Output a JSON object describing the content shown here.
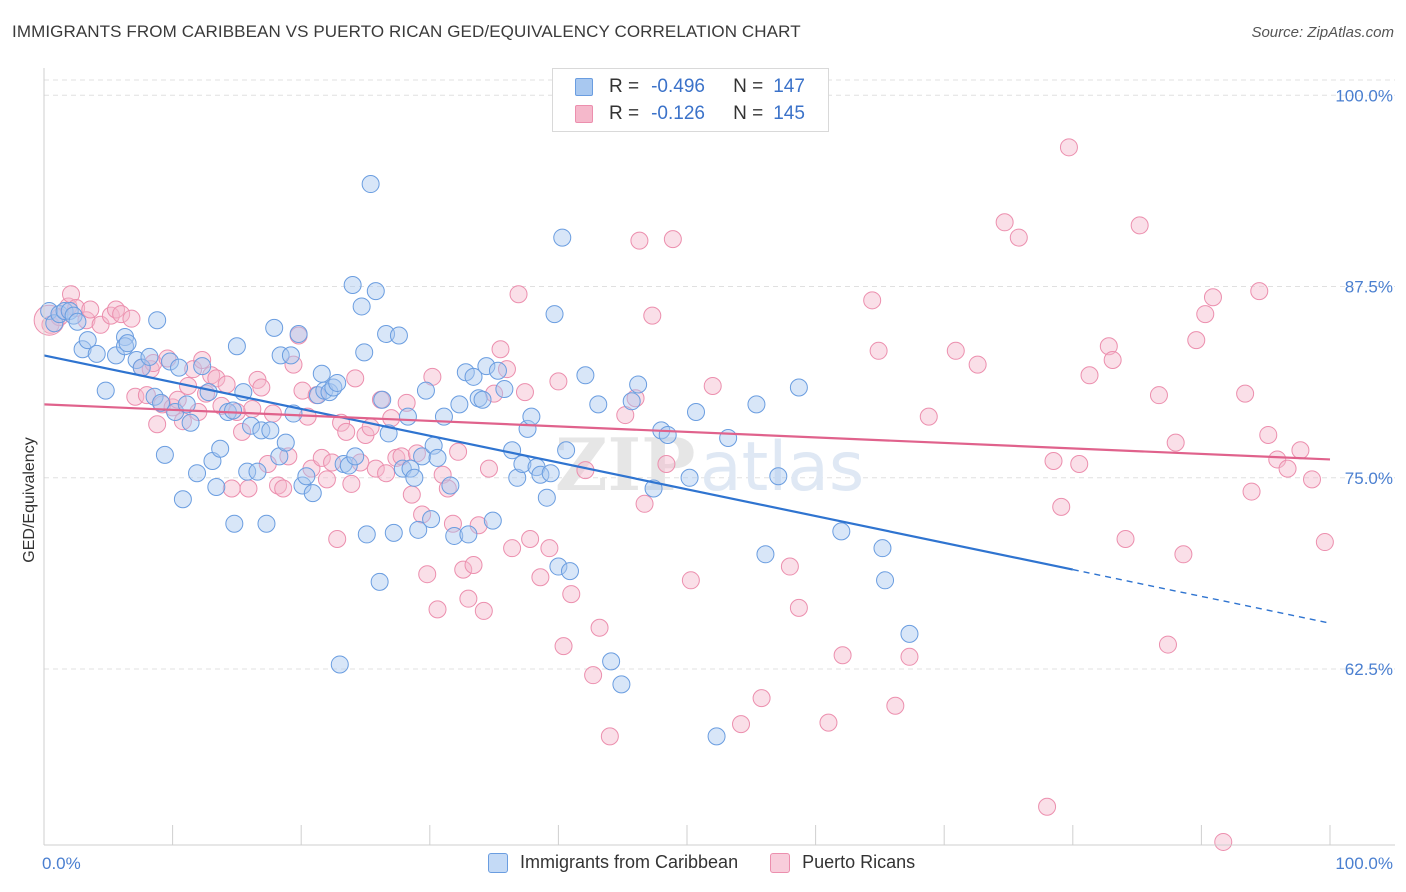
{
  "title": "IMMIGRANTS FROM CARIBBEAN VS PUERTO RICAN GED/EQUIVALENCY CORRELATION CHART",
  "source": "Source: ZipAtlas.com",
  "legend_top": {
    "row1": {
      "r_label": "R =",
      "r_value": "-0.496",
      "n_label": "N =",
      "n_value": "147"
    },
    "row2": {
      "r_label": "R =",
      "r_value": "-0.126",
      "n_label": "N =",
      "n_value": "145"
    }
  },
  "legend_bottom": {
    "series1": "Immigrants from Caribbean",
    "series2": "Puerto Ricans"
  },
  "colors": {
    "blue_fill": "#a8c8f0",
    "blue_stroke": "#6a9de0",
    "blue_line": "#2f74d0",
    "pink_fill": "#f5b8cb",
    "pink_stroke": "#ec8fae",
    "pink_line": "#e0628c",
    "tick_label": "#4a7fd0",
    "grid": "#e0e0e0"
  },
  "chart_data": {
    "type": "scatter",
    "xlabel": "",
    "ylabel": "GED/Equivalency",
    "xlim": [
      0,
      100
    ],
    "ylim": [
      51,
      101
    ],
    "x_tick_labels": [
      "0.0%",
      "100.0%"
    ],
    "y_ticks": [
      62.5,
      75.0,
      87.5,
      100.0
    ],
    "y_tick_labels": [
      "62.5%",
      "75.0%",
      "87.5%",
      "100.0%"
    ],
    "grid": "horizontal dashed",
    "legend_position": "top-center",
    "watermark": "ZIPatlas",
    "series": [
      {
        "name": "Immigrants from Caribbean",
        "color": "blue",
        "trend": {
          "x0": 0,
          "y0": 83.0,
          "x1": 80,
          "y1": 69.0,
          "dashed_to_x": 100,
          "dashed_to_y": 65.5
        },
        "points": [
          [
            0.4,
            85.9
          ],
          [
            0.8,
            85.1
          ],
          [
            1.2,
            85.7
          ],
          [
            1.6,
            85.9
          ],
          [
            2.0,
            85.9
          ],
          [
            2.3,
            85.6
          ],
          [
            2.6,
            85.2
          ],
          [
            3.0,
            83.4
          ],
          [
            3.4,
            84.0
          ],
          [
            4.1,
            83.1
          ],
          [
            4.8,
            80.7
          ],
          [
            5.6,
            83.0
          ],
          [
            6.3,
            84.2
          ],
          [
            6.3,
            83.6
          ],
          [
            6.5,
            83.8
          ],
          [
            7.2,
            82.7
          ],
          [
            7.6,
            82.2
          ],
          [
            8.2,
            82.9
          ],
          [
            8.6,
            80.3
          ],
          [
            8.8,
            85.3
          ],
          [
            9.1,
            79.9
          ],
          [
            9.4,
            76.5
          ],
          [
            9.8,
            82.6
          ],
          [
            10.2,
            79.3
          ],
          [
            10.5,
            82.2
          ],
          [
            10.8,
            73.6
          ],
          [
            11.1,
            79.8
          ],
          [
            11.4,
            78.6
          ],
          [
            11.9,
            75.3
          ],
          [
            12.3,
            82.3
          ],
          [
            12.8,
            80.6
          ],
          [
            13.1,
            76.1
          ],
          [
            13.4,
            74.4
          ],
          [
            13.7,
            76.9
          ],
          [
            14.3,
            79.3
          ],
          [
            14.7,
            79.4
          ],
          [
            14.8,
            72.0
          ],
          [
            15.0,
            83.6
          ],
          [
            15.5,
            80.6
          ],
          [
            15.8,
            75.4
          ],
          [
            16.1,
            78.4
          ],
          [
            16.6,
            75.4
          ],
          [
            16.9,
            78.1
          ],
          [
            17.3,
            72.0
          ],
          [
            17.6,
            78.1
          ],
          [
            17.9,
            84.8
          ],
          [
            18.3,
            76.4
          ],
          [
            18.4,
            83.0
          ],
          [
            18.8,
            77.3
          ],
          [
            19.2,
            83.0
          ],
          [
            19.4,
            79.2
          ],
          [
            19.8,
            84.4
          ],
          [
            20.1,
            74.5
          ],
          [
            20.4,
            75.1
          ],
          [
            20.9,
            74.0
          ],
          [
            21.3,
            80.4
          ],
          [
            21.6,
            81.8
          ],
          [
            21.8,
            80.7
          ],
          [
            22.2,
            80.6
          ],
          [
            22.5,
            80.9
          ],
          [
            22.8,
            81.2
          ],
          [
            23.0,
            62.8
          ],
          [
            23.3,
            75.9
          ],
          [
            23.7,
            75.8
          ],
          [
            24.0,
            87.6
          ],
          [
            24.2,
            76.4
          ],
          [
            24.7,
            86.2
          ],
          [
            24.9,
            83.2
          ],
          [
            25.1,
            71.3
          ],
          [
            25.4,
            94.2
          ],
          [
            25.8,
            87.2
          ],
          [
            26.1,
            68.2
          ],
          [
            26.3,
            80.1
          ],
          [
            26.6,
            84.4
          ],
          [
            26.8,
            77.9
          ],
          [
            27.2,
            71.4
          ],
          [
            27.6,
            84.3
          ],
          [
            27.9,
            75.6
          ],
          [
            28.3,
            79.0
          ],
          [
            28.5,
            75.6
          ],
          [
            28.8,
            75.0
          ],
          [
            29.1,
            71.6
          ],
          [
            29.4,
            76.4
          ],
          [
            29.7,
            80.7
          ],
          [
            30.1,
            72.3
          ],
          [
            30.3,
            77.1
          ],
          [
            30.6,
            76.3
          ],
          [
            31.1,
            79.0
          ],
          [
            31.6,
            74.5
          ],
          [
            31.9,
            71.2
          ],
          [
            32.3,
            79.8
          ],
          [
            32.8,
            81.9
          ],
          [
            33.0,
            71.3
          ],
          [
            33.4,
            81.6
          ],
          [
            33.8,
            80.2
          ],
          [
            34.1,
            80.1
          ],
          [
            34.4,
            82.3
          ],
          [
            34.9,
            72.2
          ],
          [
            35.3,
            82.0
          ],
          [
            35.8,
            80.8
          ],
          [
            36.4,
            76.8
          ],
          [
            36.8,
            75.0
          ],
          [
            37.2,
            75.9
          ],
          [
            37.6,
            78.2
          ],
          [
            37.9,
            79.0
          ],
          [
            38.3,
            75.7
          ],
          [
            38.6,
            75.2
          ],
          [
            39.1,
            73.7
          ],
          [
            39.4,
            75.3
          ],
          [
            39.7,
            85.7
          ],
          [
            40.0,
            69.2
          ],
          [
            40.3,
            90.7
          ],
          [
            40.6,
            76.8
          ],
          [
            40.9,
            68.9
          ],
          [
            42.1,
            81.7
          ],
          [
            43.1,
            79.8
          ],
          [
            44.1,
            63.0
          ],
          [
            44.9,
            61.5
          ],
          [
            45.7,
            80.0
          ],
          [
            46.2,
            81.1
          ],
          [
            47.4,
            74.3
          ],
          [
            48.0,
            78.1
          ],
          [
            48.5,
            77.8
          ],
          [
            50.2,
            75.0
          ],
          [
            50.7,
            79.3
          ],
          [
            52.3,
            58.1
          ],
          [
            53.2,
            77.6
          ],
          [
            55.4,
            79.8
          ],
          [
            56.1,
            70.0
          ],
          [
            57.1,
            75.1
          ],
          [
            58.7,
            80.9
          ],
          [
            62.0,
            71.5
          ],
          [
            65.2,
            70.4
          ],
          [
            65.4,
            68.3
          ],
          [
            67.3,
            64.8
          ]
        ]
      },
      {
        "name": "Puerto Ricans",
        "color": "pink",
        "trend": {
          "x0": 0,
          "y0": 79.8,
          "x1": 100,
          "y1": 76.2
        },
        "points": [
          [
            0.5,
            85.0
          ],
          [
            1.2,
            85.5
          ],
          [
            1.9,
            86.2
          ],
          [
            2.1,
            87.0
          ],
          [
            2.5,
            86.1
          ],
          [
            3.3,
            85.3
          ],
          [
            3.6,
            86.0
          ],
          [
            4.4,
            85.0
          ],
          [
            5.2,
            85.6
          ],
          [
            5.6,
            86.0
          ],
          [
            6.0,
            85.7
          ],
          [
            6.8,
            85.4
          ],
          [
            7.1,
            80.3
          ],
          [
            7.6,
            82.2
          ],
          [
            8.0,
            80.4
          ],
          [
            8.3,
            82.1
          ],
          [
            8.5,
            82.5
          ],
          [
            8.8,
            78.5
          ],
          [
            9.2,
            79.8
          ],
          [
            9.6,
            82.8
          ],
          [
            10.0,
            79.6
          ],
          [
            10.4,
            80.1
          ],
          [
            10.8,
            78.7
          ],
          [
            11.2,
            81.0
          ],
          [
            11.6,
            82.1
          ],
          [
            12.0,
            79.3
          ],
          [
            12.3,
            82.7
          ],
          [
            12.6,
            80.5
          ],
          [
            13.0,
            81.7
          ],
          [
            13.4,
            81.5
          ],
          [
            13.8,
            79.7
          ],
          [
            14.2,
            81.1
          ],
          [
            14.6,
            74.3
          ],
          [
            15.0,
            79.3
          ],
          [
            15.4,
            78.0
          ],
          [
            15.9,
            74.3
          ],
          [
            16.2,
            79.5
          ],
          [
            16.6,
            81.4
          ],
          [
            16.9,
            80.9
          ],
          [
            17.4,
            75.9
          ],
          [
            17.8,
            79.2
          ],
          [
            18.2,
            74.5
          ],
          [
            18.6,
            74.3
          ],
          [
            19.0,
            76.4
          ],
          [
            19.4,
            82.4
          ],
          [
            19.8,
            84.3
          ],
          [
            20.1,
            80.7
          ],
          [
            20.5,
            79.0
          ],
          [
            20.8,
            75.6
          ],
          [
            21.2,
            80.4
          ],
          [
            21.6,
            76.3
          ],
          [
            22.0,
            74.9
          ],
          [
            22.4,
            76.0
          ],
          [
            22.8,
            71.0
          ],
          [
            23.1,
            78.6
          ],
          [
            23.5,
            78.0
          ],
          [
            23.9,
            74.6
          ],
          [
            24.2,
            81.5
          ],
          [
            24.6,
            76.0
          ],
          [
            25.0,
            77.8
          ],
          [
            25.4,
            78.3
          ],
          [
            25.8,
            75.6
          ],
          [
            26.2,
            80.1
          ],
          [
            26.6,
            75.3
          ],
          [
            27.0,
            78.9
          ],
          [
            27.4,
            76.3
          ],
          [
            27.8,
            76.4
          ],
          [
            28.2,
            79.9
          ],
          [
            28.6,
            73.9
          ],
          [
            29.0,
            76.6
          ],
          [
            29.4,
            72.6
          ],
          [
            29.8,
            68.7
          ],
          [
            30.2,
            81.6
          ],
          [
            30.6,
            66.4
          ],
          [
            31.0,
            75.2
          ],
          [
            31.4,
            74.3
          ],
          [
            31.8,
            72.0
          ],
          [
            32.2,
            76.7
          ],
          [
            32.6,
            69.0
          ],
          [
            33.0,
            67.1
          ],
          [
            33.4,
            69.3
          ],
          [
            33.8,
            71.9
          ],
          [
            34.2,
            66.3
          ],
          [
            34.6,
            75.6
          ],
          [
            35.0,
            80.5
          ],
          [
            35.5,
            83.4
          ],
          [
            36.0,
            82.1
          ],
          [
            36.4,
            70.4
          ],
          [
            36.9,
            87.0
          ],
          [
            37.4,
            80.6
          ],
          [
            37.8,
            71.0
          ],
          [
            38.6,
            68.5
          ],
          [
            39.3,
            70.4
          ],
          [
            40.0,
            81.3
          ],
          [
            40.4,
            64.0
          ],
          [
            41.0,
            67.4
          ],
          [
            42.1,
            75.5
          ],
          [
            42.7,
            62.1
          ],
          [
            43.2,
            65.2
          ],
          [
            44.0,
            58.1
          ],
          [
            45.2,
            79.1
          ],
          [
            46.0,
            80.2
          ],
          [
            46.3,
            90.5
          ],
          [
            46.7,
            73.3
          ],
          [
            47.3,
            85.6
          ],
          [
            48.4,
            75.9
          ],
          [
            48.9,
            90.6
          ],
          [
            50.3,
            68.3
          ],
          [
            52.0,
            81.0
          ],
          [
            54.2,
            58.9
          ],
          [
            55.8,
            60.6
          ],
          [
            58.0,
            69.2
          ],
          [
            58.7,
            66.5
          ],
          [
            61.0,
            59.0
          ],
          [
            62.1,
            63.4
          ],
          [
            64.4,
            86.6
          ],
          [
            64.9,
            83.3
          ],
          [
            66.2,
            60.1
          ],
          [
            67.3,
            63.3
          ],
          [
            68.8,
            79.0
          ],
          [
            70.9,
            83.3
          ],
          [
            72.6,
            82.4
          ],
          [
            74.7,
            91.7
          ],
          [
            75.8,
            90.7
          ],
          [
            78.0,
            53.5
          ],
          [
            78.5,
            76.1
          ],
          [
            79.1,
            73.1
          ],
          [
            79.7,
            96.6
          ],
          [
            80.5,
            75.9
          ],
          [
            81.3,
            81.7
          ],
          [
            82.8,
            83.6
          ],
          [
            83.1,
            82.7
          ],
          [
            84.1,
            71.0
          ],
          [
            85.2,
            91.5
          ],
          [
            86.7,
            80.4
          ],
          [
            87.4,
            64.1
          ],
          [
            88.0,
            77.3
          ],
          [
            88.6,
            70.0
          ],
          [
            89.6,
            84.0
          ],
          [
            90.3,
            85.7
          ],
          [
            90.9,
            86.8
          ],
          [
            91.7,
            51.2
          ],
          [
            93.4,
            80.5
          ],
          [
            93.9,
            74.1
          ],
          [
            94.5,
            87.2
          ],
          [
            95.2,
            77.8
          ],
          [
            95.9,
            76.2
          ],
          [
            96.7,
            75.6
          ],
          [
            97.7,
            76.8
          ],
          [
            98.6,
            74.9
          ],
          [
            99.6,
            70.8
          ]
        ]
      }
    ]
  }
}
